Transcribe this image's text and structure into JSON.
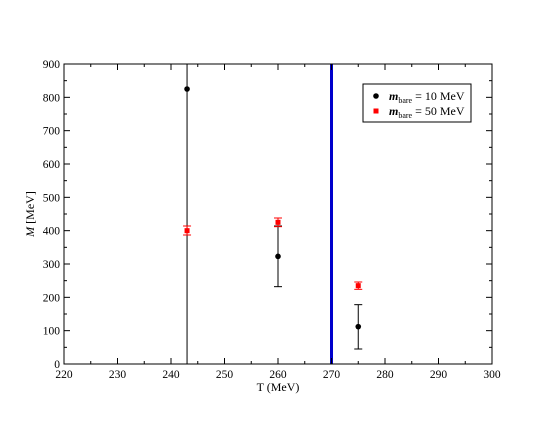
{
  "chart_data": {
    "type": "scatter",
    "xlabel": "T (MeV)",
    "ylabel": "M [MeV]",
    "xlim": [
      220,
      300
    ],
    "ylim": [
      0,
      900
    ],
    "xticks": [
      220,
      230,
      240,
      250,
      260,
      270,
      280,
      290,
      300
    ],
    "yticks": [
      0,
      100,
      200,
      300,
      400,
      500,
      600,
      700,
      800,
      900
    ],
    "grid": false,
    "legend_position": "top-right",
    "vertical_line": {
      "x": 270,
      "color": "#0000cc"
    },
    "series": [
      {
        "name": "m_bare = 10 MeV",
        "legend_main": "m",
        "legend_sub": "bare",
        "legend_rest": " = 10 MeV",
        "marker": "circle",
        "color": "#000000",
        "points": [
          {
            "x": 243,
            "y": 825,
            "ylow": 0,
            "yhigh": 900
          },
          {
            "x": 260,
            "y": 323,
            "ylow": 232,
            "yhigh": 414
          },
          {
            "x": 275,
            "y": 112,
            "ylow": 45,
            "yhigh": 178
          }
        ]
      },
      {
        "name": "m_bare = 50 MeV",
        "legend_main": "m",
        "legend_sub": "bare",
        "legend_rest": " = 50 MeV",
        "marker": "square",
        "color": "#ff0000",
        "points": [
          {
            "x": 243,
            "y": 400,
            "ylow": 387,
            "yhigh": 414
          },
          {
            "x": 260,
            "y": 425,
            "ylow": 412,
            "yhigh": 438
          },
          {
            "x": 275,
            "y": 235,
            "ylow": 224,
            "yhigh": 246
          }
        ]
      }
    ]
  }
}
